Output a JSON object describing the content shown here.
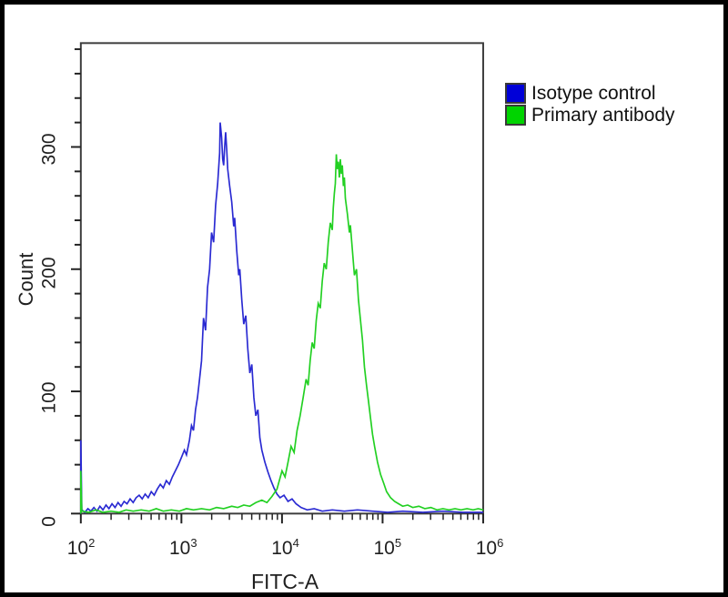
{
  "figure": {
    "background": "#ffffff",
    "outer_border_color": "#000000",
    "frame_color": "#3c3c3c",
    "tick_color": "#222222",
    "text_color": "#1f1f1f"
  },
  "legend": {
    "items": [
      {
        "label": "Isotype control",
        "color": "#0000d8"
      },
      {
        "label": "Primary antibody",
        "color": "#00d400"
      }
    ]
  },
  "chart_data": {
    "type": "line",
    "subtype": "flow-cytometry-histogram",
    "title": "",
    "xlabel": "FITC-A",
    "ylabel": "Count",
    "x_scale": "log10",
    "xlim_log": [
      2,
      6
    ],
    "ylim": [
      0,
      385
    ],
    "x_axis": {
      "tick_base": "10",
      "tick_exponents": [
        2,
        3,
        4,
        5,
        6
      ],
      "minor_ticks": "log decades 2-9"
    },
    "y_axis": {
      "major_tick_labels": [
        "0",
        "100",
        "200",
        "300"
      ],
      "major_tick_values": [
        0,
        100,
        200,
        300
      ],
      "minor_step": 20,
      "max_tick": 380
    },
    "grid": false,
    "legend_position": "top-right-outside",
    "series": [
      {
        "name": "Isotype control",
        "color": "#2a2ad2",
        "peak": {
          "x_log10": 3.39,
          "x_value": 2400,
          "count": 320
        },
        "points": [
          [
            2.0,
            0
          ],
          [
            2.0,
            60
          ],
          [
            2.01,
            3
          ],
          [
            2.04,
            1
          ],
          [
            2.07,
            4
          ],
          [
            2.1,
            2
          ],
          [
            2.13,
            5
          ],
          [
            2.16,
            2
          ],
          [
            2.19,
            6
          ],
          [
            2.22,
            3
          ],
          [
            2.25,
            7
          ],
          [
            2.28,
            4
          ],
          [
            2.31,
            8
          ],
          [
            2.34,
            5
          ],
          [
            2.37,
            9
          ],
          [
            2.4,
            6
          ],
          [
            2.43,
            10
          ],
          [
            2.46,
            8
          ],
          [
            2.49,
            12
          ],
          [
            2.52,
            9
          ],
          [
            2.55,
            13
          ],
          [
            2.58,
            15
          ],
          [
            2.61,
            12
          ],
          [
            2.64,
            16
          ],
          [
            2.67,
            13
          ],
          [
            2.7,
            18
          ],
          [
            2.73,
            15
          ],
          [
            2.76,
            20
          ],
          [
            2.79,
            24
          ],
          [
            2.82,
            21
          ],
          [
            2.85,
            27
          ],
          [
            2.88,
            24
          ],
          [
            2.91,
            30
          ],
          [
            2.94,
            35
          ],
          [
            2.97,
            40
          ],
          [
            3.0,
            46
          ],
          [
            3.03,
            52
          ],
          [
            3.05,
            48
          ],
          [
            3.08,
            60
          ],
          [
            3.1,
            72
          ],
          [
            3.12,
            68
          ],
          [
            3.14,
            85
          ],
          [
            3.16,
            95
          ],
          [
            3.18,
            110
          ],
          [
            3.2,
            125
          ],
          [
            3.22,
            160
          ],
          [
            3.24,
            150
          ],
          [
            3.26,
            185
          ],
          [
            3.28,
            200
          ],
          [
            3.3,
            230
          ],
          [
            3.32,
            222
          ],
          [
            3.34,
            252
          ],
          [
            3.36,
            270
          ],
          [
            3.38,
            295
          ],
          [
            3.385,
            320
          ],
          [
            3.4,
            308
          ],
          [
            3.41,
            290
          ],
          [
            3.42,
            285
          ],
          [
            3.43,
            300
          ],
          [
            3.44,
            312
          ],
          [
            3.45,
            298
          ],
          [
            3.46,
            282
          ],
          [
            3.48,
            268
          ],
          [
            3.5,
            255
          ],
          [
            3.52,
            235
          ],
          [
            3.53,
            242
          ],
          [
            3.55,
            215
          ],
          [
            3.57,
            195
          ],
          [
            3.58,
            200
          ],
          [
            3.6,
            175
          ],
          [
            3.62,
            155
          ],
          [
            3.64,
            162
          ],
          [
            3.66,
            135
          ],
          [
            3.68,
            115
          ],
          [
            3.7,
            122
          ],
          [
            3.72,
            95
          ],
          [
            3.74,
            80
          ],
          [
            3.76,
            85
          ],
          [
            3.78,
            62
          ],
          [
            3.8,
            52
          ],
          [
            3.83,
            42
          ],
          [
            3.86,
            34
          ],
          [
            3.89,
            27
          ],
          [
            3.92,
            21
          ],
          [
            3.95,
            16
          ],
          [
            3.98,
            13
          ],
          [
            4.02,
            15
          ],
          [
            4.06,
            10
          ],
          [
            4.1,
            12
          ],
          [
            4.14,
            8
          ],
          [
            4.19,
            5
          ],
          [
            4.25,
            3
          ],
          [
            4.32,
            4
          ],
          [
            4.4,
            2
          ],
          [
            4.5,
            3
          ],
          [
            4.62,
            2
          ],
          [
            4.75,
            3
          ],
          [
            4.9,
            2
          ],
          [
            5.05,
            1
          ],
          [
            5.2,
            2
          ],
          [
            5.4,
            1
          ],
          [
            5.6,
            2
          ],
          [
            5.8,
            1
          ],
          [
            6.0,
            1
          ]
        ]
      },
      {
        "name": "Primary antibody",
        "color": "#22d022",
        "peak": {
          "x_log10": 4.54,
          "x_value": 35000,
          "count": 294
        },
        "points": [
          [
            2.0,
            0
          ],
          [
            2.0,
            35
          ],
          [
            2.01,
            2
          ],
          [
            2.08,
            1
          ],
          [
            2.15,
            3
          ],
          [
            2.22,
            1
          ],
          [
            2.3,
            2
          ],
          [
            2.38,
            1
          ],
          [
            2.45,
            3
          ],
          [
            2.52,
            2
          ],
          [
            2.6,
            3
          ],
          [
            2.68,
            2
          ],
          [
            2.75,
            4
          ],
          [
            2.82,
            2
          ],
          [
            2.9,
            3
          ],
          [
            2.98,
            2
          ],
          [
            3.05,
            4
          ],
          [
            3.12,
            3
          ],
          [
            3.2,
            4
          ],
          [
            3.28,
            3
          ],
          [
            3.35,
            5
          ],
          [
            3.42,
            4
          ],
          [
            3.5,
            6
          ],
          [
            3.56,
            5
          ],
          [
            3.62,
            7
          ],
          [
            3.68,
            6
          ],
          [
            3.74,
            9
          ],
          [
            3.8,
            11
          ],
          [
            3.85,
            9
          ],
          [
            3.9,
            14
          ],
          [
            3.95,
            20
          ],
          [
            4.0,
            35
          ],
          [
            4.03,
            30
          ],
          [
            4.06,
            42
          ],
          [
            4.09,
            55
          ],
          [
            4.12,
            50
          ],
          [
            4.15,
            68
          ],
          [
            4.18,
            80
          ],
          [
            4.21,
            95
          ],
          [
            4.24,
            110
          ],
          [
            4.26,
            105
          ],
          [
            4.28,
            125
          ],
          [
            4.3,
            140
          ],
          [
            4.32,
            135
          ],
          [
            4.34,
            158
          ],
          [
            4.36,
            172
          ],
          [
            4.38,
            168
          ],
          [
            4.4,
            190
          ],
          [
            4.42,
            205
          ],
          [
            4.44,
            200
          ],
          [
            4.46,
            222
          ],
          [
            4.48,
            238
          ],
          [
            4.5,
            232
          ],
          [
            4.51,
            250
          ],
          [
            4.52,
            262
          ],
          [
            4.53,
            270
          ],
          [
            4.54,
            294
          ],
          [
            4.55,
            282
          ],
          [
            4.56,
            288
          ],
          [
            4.57,
            275
          ],
          [
            4.58,
            290
          ],
          [
            4.59,
            278
          ],
          [
            4.6,
            285
          ],
          [
            4.61,
            268
          ],
          [
            4.62,
            275
          ],
          [
            4.63,
            258
          ],
          [
            4.65,
            245
          ],
          [
            4.67,
            230
          ],
          [
            4.68,
            236
          ],
          [
            4.7,
            215
          ],
          [
            4.72,
            195
          ],
          [
            4.74,
            200
          ],
          [
            4.76,
            175
          ],
          [
            4.78,
            158
          ],
          [
            4.8,
            142
          ],
          [
            4.82,
            120
          ],
          [
            4.84,
            105
          ],
          [
            4.86,
            92
          ],
          [
            4.88,
            78
          ],
          [
            4.9,
            65
          ],
          [
            4.92,
            55
          ],
          [
            4.95,
            42
          ],
          [
            4.98,
            32
          ],
          [
            5.01,
            25
          ],
          [
            5.04,
            18
          ],
          [
            5.08,
            13
          ],
          [
            5.12,
            10
          ],
          [
            5.16,
            8
          ],
          [
            5.2,
            6
          ],
          [
            5.25,
            7
          ],
          [
            5.3,
            5
          ],
          [
            5.36,
            6
          ],
          [
            5.42,
            4
          ],
          [
            5.48,
            5
          ],
          [
            5.54,
            3
          ],
          [
            5.6,
            4
          ],
          [
            5.66,
            3
          ],
          [
            5.72,
            4
          ],
          [
            5.78,
            3
          ],
          [
            5.84,
            4
          ],
          [
            5.9,
            3
          ],
          [
            5.95,
            4
          ],
          [
            6.0,
            3
          ]
        ]
      }
    ]
  }
}
